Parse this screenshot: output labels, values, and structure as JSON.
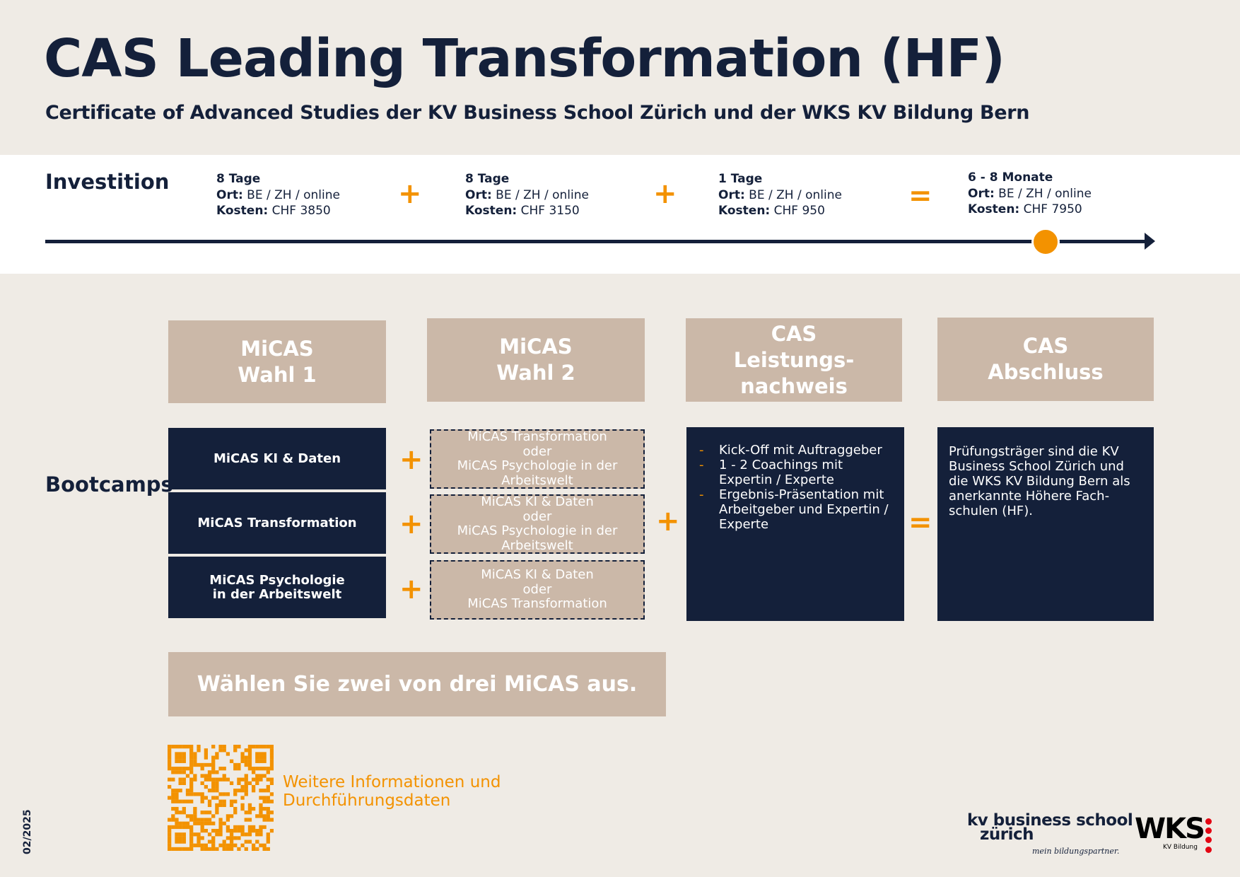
{
  "header": {
    "title": "CAS Leading Transformation (HF)",
    "subtitle": "Certificate of Advanced Studies der KV Business School Zürich und der WKS KV Bildung Bern"
  },
  "investition": {
    "label": "Investition",
    "ort_label": "Ort:",
    "kosten_label": "Kosten:",
    "items": [
      {
        "duration": "8 Tage",
        "ort": "BE / ZH / online",
        "kosten": "CHF 3850"
      },
      {
        "duration": "8 Tage",
        "ort": "BE / ZH / online",
        "kosten": "CHF 3150"
      },
      {
        "duration": "1 Tage",
        "ort": "BE / ZH / online",
        "kosten": "CHF 950"
      },
      {
        "duration": "6 - 8 Monate",
        "ort": "BE / ZH / online",
        "kosten": "CHF 7950"
      }
    ],
    "plus": "+",
    "equals": "="
  },
  "columns": [
    {
      "line1": "MiCAS",
      "line2": "Wahl 1"
    },
    {
      "line1": "MiCAS",
      "line2": "Wahl 2"
    },
    {
      "line1": "CAS",
      "line2": "Leistungs-",
      "line3": "nachweis"
    },
    {
      "line1": "CAS",
      "line2": "Abschluss"
    }
  ],
  "bootcamps": {
    "label": "Bootcamps",
    "wahl1": [
      {
        "l1": "MiCAS KI & Daten"
      },
      {
        "l1": "MiCAS Transformation"
      },
      {
        "l1": "MiCAS Psychologie",
        "l2": "in der Arbeitswelt"
      }
    ],
    "wahl2": [
      {
        "a": "MiCAS Transformation",
        "or": "oder",
        "b": "MiCAS Psychologie in der Arbeitswelt"
      },
      {
        "a": "MiCAS KI & Daten",
        "or": "oder",
        "b": "MiCAS Psychologie in der Arbeitswelt"
      },
      {
        "a": "MiCAS KI & Daten",
        "or": "oder",
        "b": "MiCAS Transformation"
      }
    ],
    "leistungsnachweis": [
      "Kick-Off mit Auftraggeber",
      "1 - 2 Coachings mit Expertin / Experte",
      "Ergebnis-Präsentation mit Arbeitgeber und Expertin / Experte"
    ],
    "bullet": "-",
    "abschluss": "Prüfungsträger sind die KV Business School Zürich und die WKS KV Bildung Bern als anerkannte Höhere Fach-schulen (HF)."
  },
  "bottom_bar": "Wählen Sie zwei von drei MiCAS aus.",
  "qr": {
    "text_line1": "Weitere Informationen und",
    "text_line2": "Durchführungsdaten",
    "icon": "qr-code-icon"
  },
  "date": "02/2025",
  "logos": {
    "kv_line1": "kv business school",
    "kv_line2": "zürich",
    "kv_tagline": "mein bildungspartner.",
    "wks": "WKS",
    "wks_sub": "KV Bildung"
  },
  "colors": {
    "navy": "#14203a",
    "tan": "#cbb8a8",
    "orange": "#f39200",
    "background": "#efebe5",
    "wks_red": "#e30613"
  }
}
